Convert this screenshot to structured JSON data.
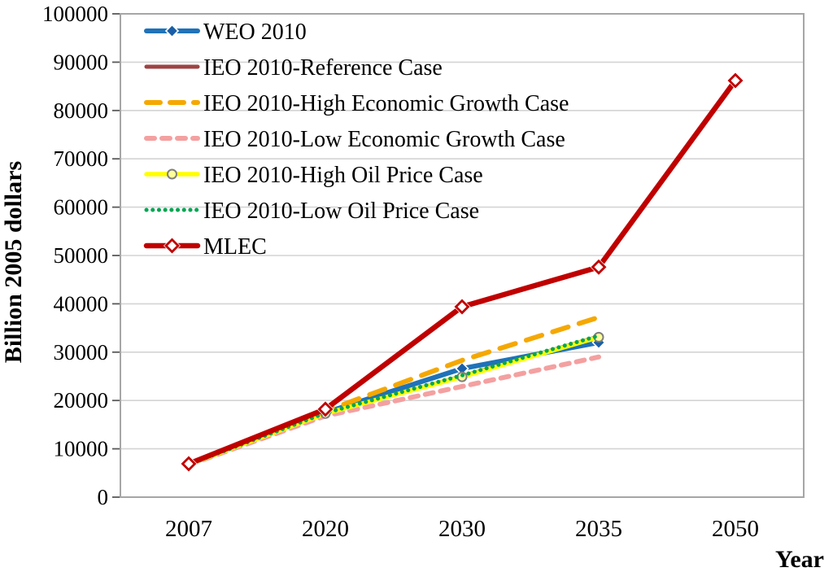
{
  "chart_data": {
    "type": "line",
    "title": "",
    "xlabel": "Year",
    "ylabel": "Billion 2005 dollars",
    "x_categories": [
      "2007",
      "2020",
      "2030",
      "2035",
      "2050"
    ],
    "ylim": [
      0,
      100000
    ],
    "ytick_step": 10000,
    "ytick_labels": [
      "0",
      "10000",
      "20000",
      "30000",
      "40000",
      "50000",
      "60000",
      "70000",
      "80000",
      "90000",
      "100000"
    ],
    "grid": "horizontal-gridlines-on",
    "legend_position": "top-left-inside",
    "colors": {
      "gridline": "#d4d4d4",
      "plot_border": "#a6a6a6",
      "tick": "#595959"
    },
    "series": [
      {
        "name": "WEO 2010",
        "color": "#1f72b8",
        "marker_color": "#1b5fa8",
        "style": "solid",
        "marker": "diamond-filled",
        "values": [
          6800,
          17500,
          26600,
          32000,
          null
        ]
      },
      {
        "name": "IEO 2010-Reference Case",
        "color": "#9e4343",
        "marker_color": "#9e4343",
        "style": "solid",
        "marker": "none",
        "values": [
          6800,
          17300,
          25000,
          33200,
          null
        ]
      },
      {
        "name": "IEO 2010-High Economic Growth Case",
        "color": "#f5a800",
        "marker_color": "#f5a800",
        "style": "long-dash",
        "marker": "none",
        "values": [
          6900,
          17800,
          28300,
          37200,
          null
        ]
      },
      {
        "name": "IEO 2010-Low Economic Growth Case",
        "color": "#f4a0a0",
        "marker_color": "#f4a0a0",
        "style": "dash",
        "marker": "none",
        "values": [
          6700,
          16800,
          22900,
          29000,
          null
        ]
      },
      {
        "name": "IEO 2010-High Oil Price Case",
        "color": "#ffff00",
        "marker_color": "#ffff99",
        "style": "solid",
        "marker": "circle-open",
        "values": [
          6800,
          17300,
          24900,
          33100,
          null
        ]
      },
      {
        "name": "IEO 2010-Low Oil Price Case",
        "color": "#00a651",
        "marker_color": "#00a651",
        "style": "dot",
        "marker": "none",
        "values": [
          6800,
          17400,
          25200,
          33400,
          null
        ]
      },
      {
        "name": "MLEC",
        "color": "#c00000",
        "marker_color": "#ffffff",
        "style": "solid",
        "marker": "diamond-open",
        "values": [
          6900,
          18200,
          39400,
          47600,
          86200
        ]
      }
    ]
  }
}
